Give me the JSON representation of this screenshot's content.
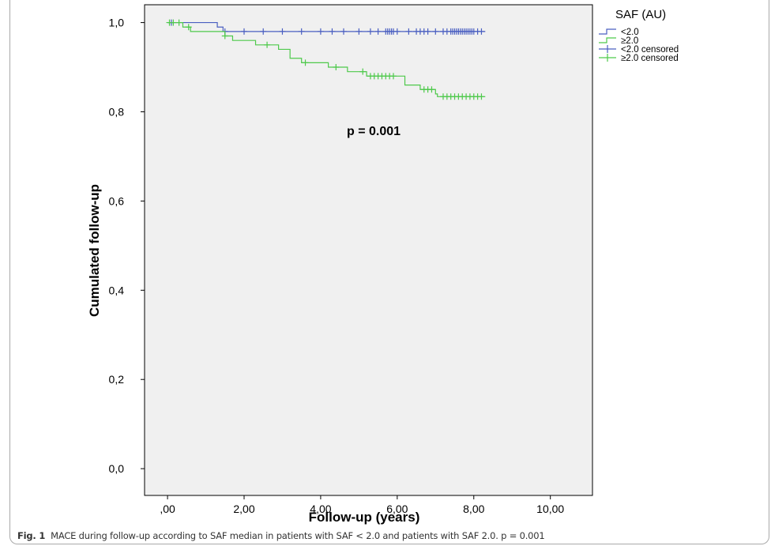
{
  "chart_data": {
    "type": "line",
    "xlabel": "Follow-up (years)",
    "ylabel": "Cumulated follow-up",
    "xlim": [
      -0.6,
      11.1
    ],
    "ylim": [
      -0.06,
      1.04
    ],
    "x_ticks": [
      0,
      2,
      4,
      6,
      8,
      10
    ],
    "x_tick_labels": [
      ",00",
      "2,00",
      "4,00",
      "6,00",
      "8,00",
      "10,00"
    ],
    "y_ticks": [
      0,
      0.2,
      0.4,
      0.6,
      0.8,
      1.0
    ],
    "y_tick_labels": [
      "0,0",
      "0,2",
      "0,4",
      "0,6",
      "0,8",
      "1,0"
    ],
    "grid": false,
    "legend_title": "SAF (AU)",
    "legend_position": "right",
    "annotation": "p = 0.001",
    "series": [
      {
        "name": "<2.0",
        "color": "#4a5fc1",
        "steps": [
          [
            0,
            1.0
          ],
          [
            1.3,
            0.99
          ],
          [
            1.45,
            0.98
          ],
          [
            8.3,
            0.98
          ]
        ],
        "censored_name": "<2.0 censored",
        "censored": [
          0.1,
          1.5,
          2.0,
          2.5,
          3.0,
          3.5,
          4.0,
          4.3,
          4.6,
          5.0,
          5.3,
          5.5,
          5.7,
          5.75,
          5.8,
          5.85,
          5.9,
          6.0,
          6.3,
          6.5,
          6.6,
          6.7,
          6.8,
          7.0,
          7.2,
          7.3,
          7.4,
          7.45,
          7.5,
          7.55,
          7.6,
          7.65,
          7.7,
          7.75,
          7.8,
          7.85,
          7.9,
          7.95,
          8.0,
          8.1,
          8.2
        ]
      },
      {
        "name": "≥2.0",
        "color": "#4ec94b",
        "steps": [
          [
            0,
            1.0
          ],
          [
            0.4,
            0.99
          ],
          [
            0.6,
            0.98
          ],
          [
            1.5,
            0.97
          ],
          [
            1.7,
            0.96
          ],
          [
            2.3,
            0.95
          ],
          [
            2.9,
            0.94
          ],
          [
            3.2,
            0.92
          ],
          [
            3.5,
            0.91
          ],
          [
            4.2,
            0.9
          ],
          [
            4.7,
            0.89
          ],
          [
            5.2,
            0.88
          ],
          [
            6.2,
            0.86
          ],
          [
            6.6,
            0.85
          ],
          [
            7.0,
            0.84
          ],
          [
            7.05,
            0.834
          ],
          [
            8.3,
            0.834
          ]
        ],
        "censored_name": "≥2.0 censored",
        "censored": [
          0.05,
          0.15,
          0.3,
          0.55,
          1.5,
          2.6,
          3.6,
          4.4,
          5.1,
          5.3,
          5.4,
          5.5,
          5.6,
          5.7,
          5.8,
          5.9,
          6.7,
          6.8,
          6.9,
          7.2,
          7.3,
          7.4,
          7.5,
          7.6,
          7.7,
          7.8,
          7.9,
          8.0,
          8.1,
          8.2
        ]
      }
    ]
  },
  "caption": {
    "label": "Fig. 1",
    "text": "MACE during follow-up according to SAF median in patients with SAF < 2.0 and patients with SAF 2.0. p = 0.001"
  },
  "colors": {
    "plot_background": "#f0f0f0",
    "axis": "#000000"
  }
}
